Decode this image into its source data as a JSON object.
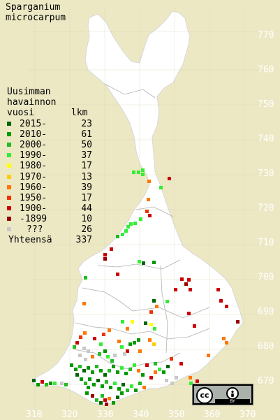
{
  "title": {
    "line1": "Sparganium",
    "line2": "microcarpum"
  },
  "legend": {
    "heading": [
      "Uusimman",
      "havainnon"
    ],
    "col_year": "vuosi",
    "col_count": "lkm",
    "rows": [
      {
        "label": "2015-",
        "count": "23",
        "color": "#006600"
      },
      {
        "label": "2010-",
        "count": "61",
        "color": "#009900"
      },
      {
        "label": "2000-",
        "count": "50",
        "color": "#22bb22"
      },
      {
        "label": "1990-",
        "count": "37",
        "color": "#33ee33"
      },
      {
        "label": "1980-",
        "count": "17",
        "color": "#ffff00"
      },
      {
        "label": "1970-",
        "count": "13",
        "color": "#ffcc00"
      },
      {
        "label": "1960-",
        "count": "39",
        "color": "#ff7700"
      },
      {
        "label": "1950-",
        "count": "17",
        "color": "#ee3300"
      },
      {
        "label": "1900-",
        "count": "44",
        "color": "#cc0000"
      },
      {
        "label": "-1899",
        "count": "10",
        "color": "#990000"
      },
      {
        "label": "???",
        "count": "26",
        "color": "#c8c8c8"
      }
    ],
    "total_label": "Yhteensä",
    "total_count": "337"
  },
  "grid": {
    "y_labels": [
      "770",
      "760",
      "750",
      "740",
      "730",
      "720",
      "710",
      "700",
      "690",
      "680",
      "670"
    ],
    "x_labels": [
      "310",
      "320",
      "330",
      "340",
      "350",
      "360",
      "370"
    ]
  },
  "license_badge": {
    "cc": "cc",
    "by": "BY"
  },
  "colors": {
    "background": "#ece8c4",
    "land": "#ffffff",
    "grid_label": "#ffffff",
    "border_line": "#d6d6d6"
  }
}
